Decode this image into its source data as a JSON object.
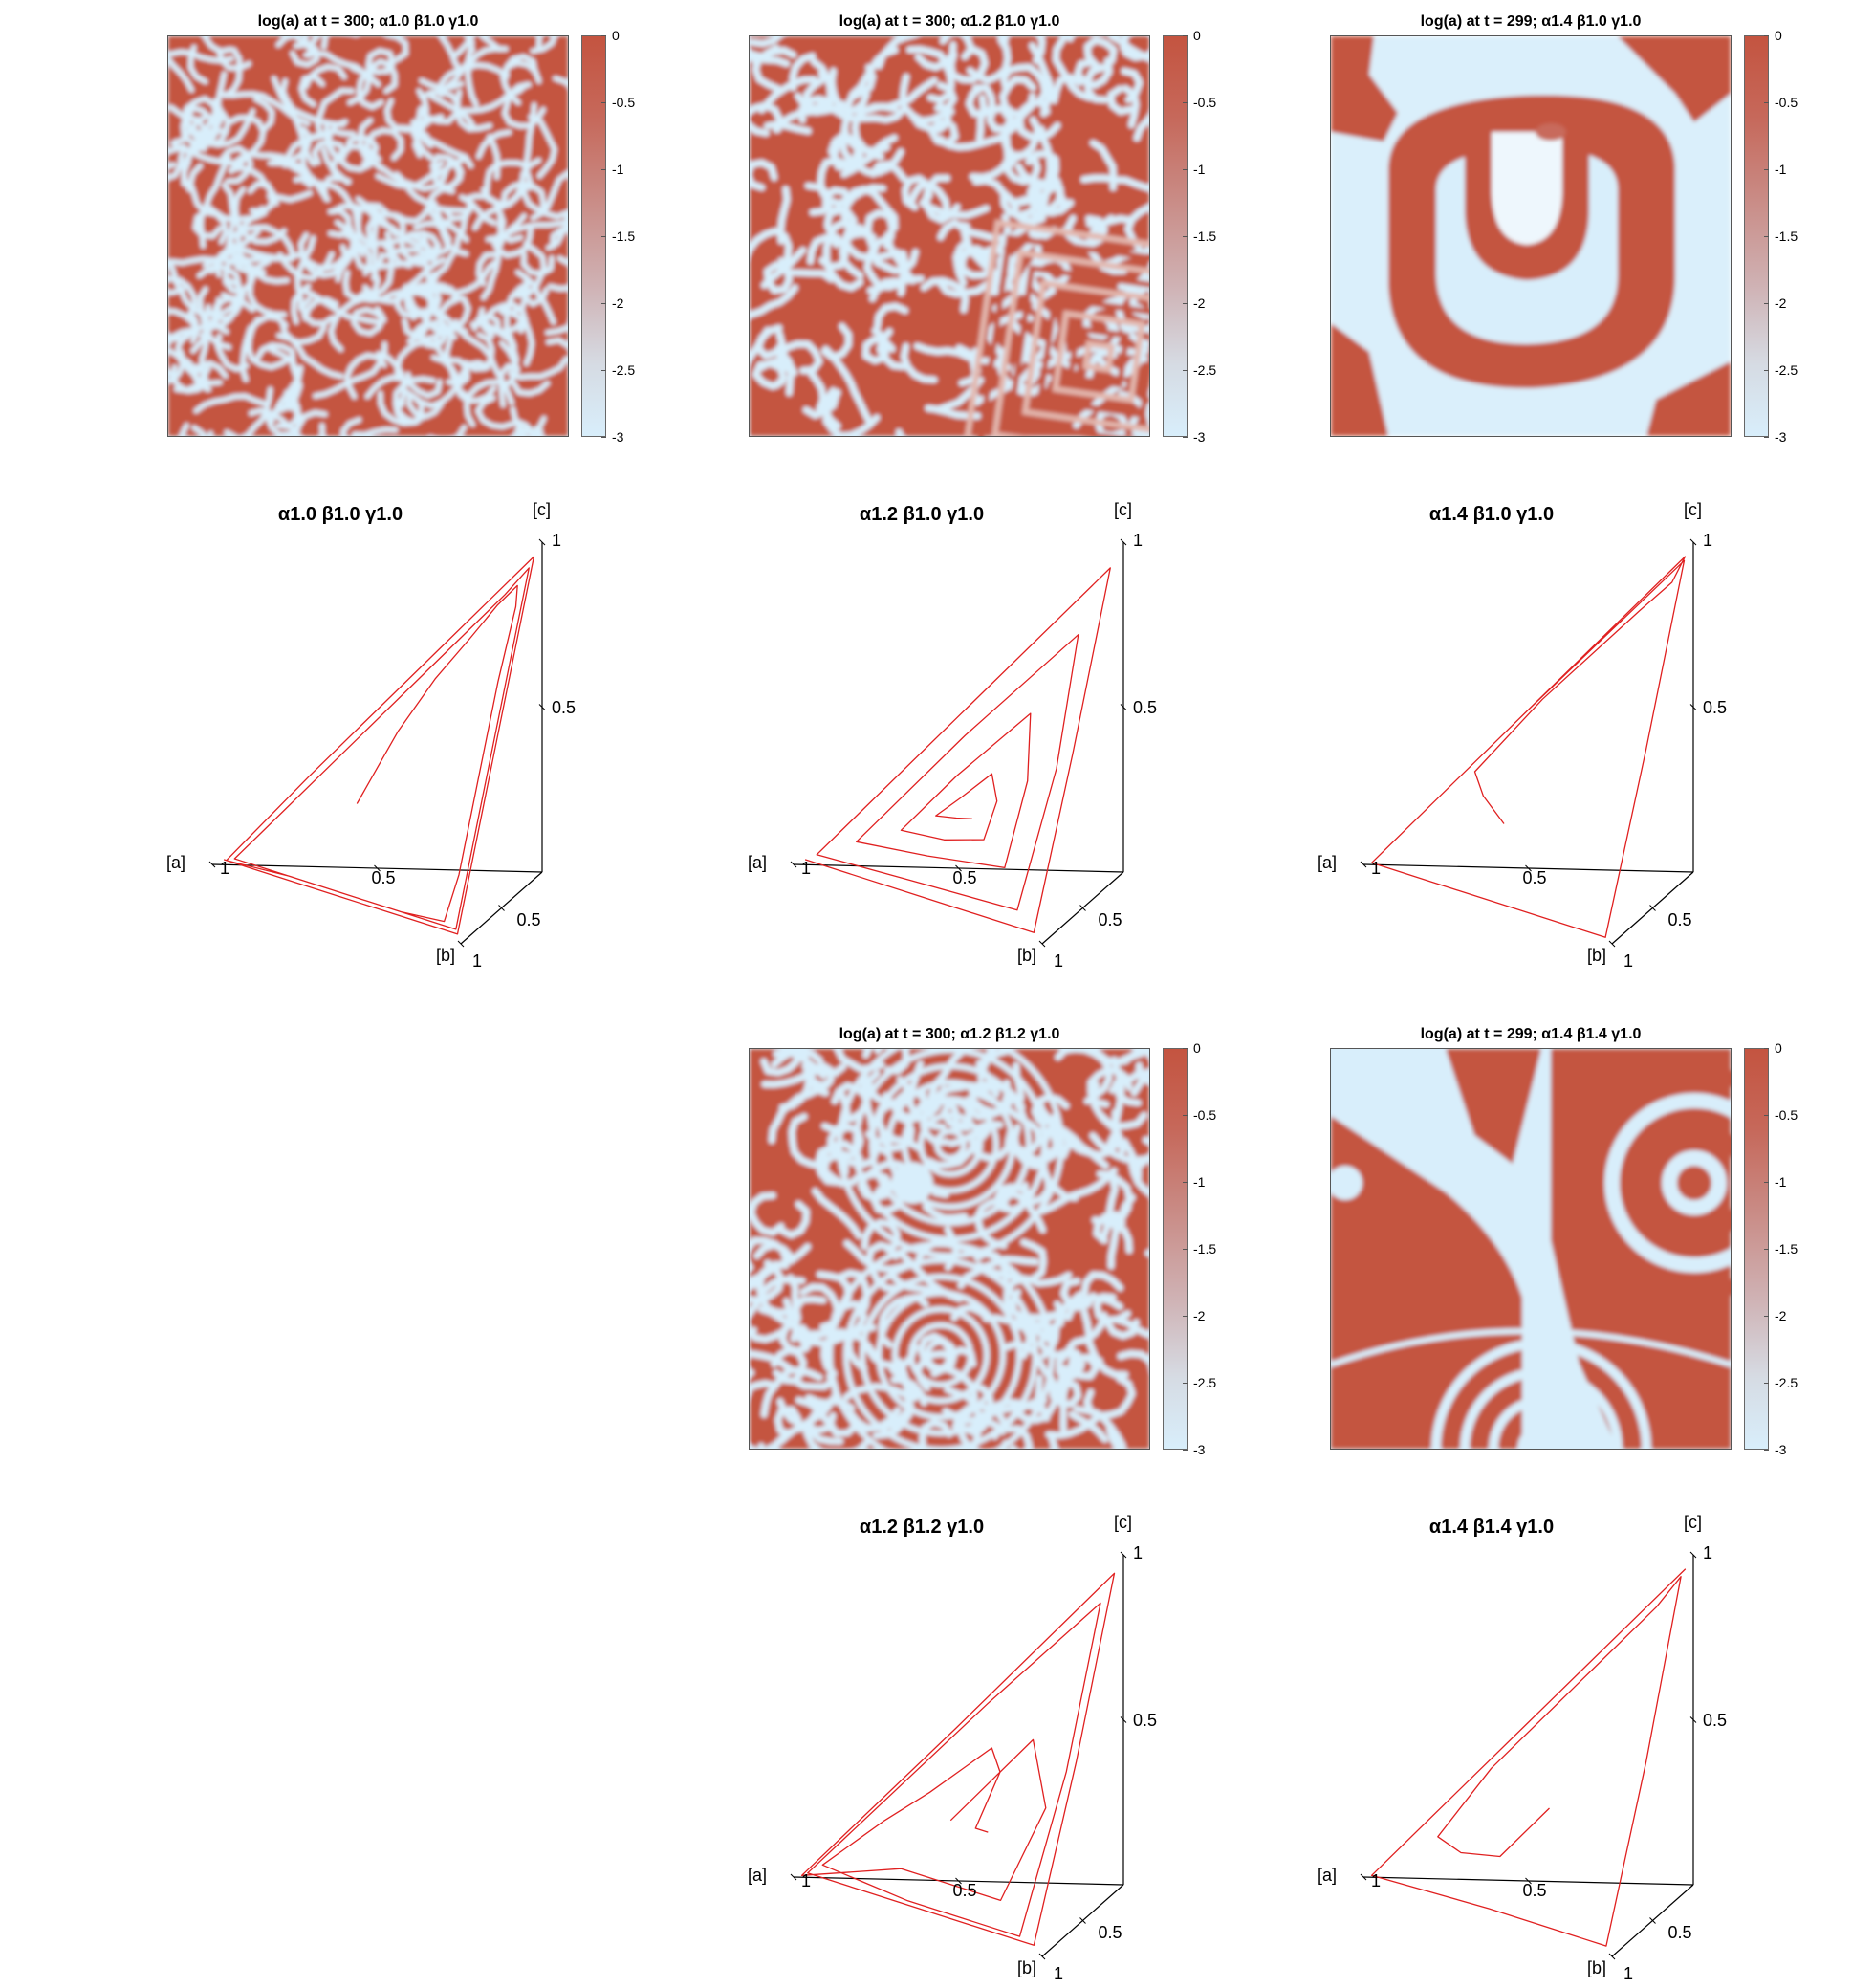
{
  "chart_data": [
    {
      "id": "h1",
      "type": "heatmap",
      "title": "log(a) at t = 300; α1.0 β1.0 γ1.0",
      "pattern": "dense labyrinth spiral stripes",
      "colormap": {
        "low": "#d8eefb",
        "high": "#c45440"
      },
      "clim": [
        -3,
        0
      ],
      "colorbar_ticks": [
        "0",
        "-0.5",
        "-1",
        "-1.5",
        "-2",
        "-2.5",
        "-3"
      ]
    },
    {
      "id": "h2",
      "type": "heatmap",
      "title": "log(a) at t = 300; α1.2 β1.0 γ1.0",
      "pattern": "labyrinth stripes with square target in lower right",
      "colormap": {
        "low": "#d8eefb",
        "high": "#c45440"
      },
      "clim": [
        -3,
        0
      ],
      "colorbar_ticks": [
        "0",
        "-0.5",
        "-1",
        "-1.5",
        "-2",
        "-2.5",
        "-3"
      ]
    },
    {
      "id": "h3",
      "type": "heatmap",
      "title": "log(a) at t = 299; α1.4 β1.0 γ1.0",
      "pattern": "large nested U-shaped rings",
      "colormap": {
        "low": "#d8eefb",
        "high": "#c45440"
      },
      "clim": [
        -3,
        0
      ],
      "colorbar_ticks": [
        "0",
        "-0.5",
        "-1",
        "-1.5",
        "-2",
        "-2.5",
        "-3"
      ]
    },
    {
      "id": "t1",
      "type": "line",
      "title": "α1.0 β1.0 γ1.0",
      "axes": [
        "[a]",
        "[b]",
        "[c]"
      ],
      "ticks": {
        "a": [
          "1",
          "0.5"
        ],
        "b": [
          "0.5",
          "1"
        ],
        "c": [
          "0.5",
          "1"
        ]
      },
      "xlim": [
        0,
        1
      ],
      "ylim": [
        0,
        1
      ],
      "zlim": [
        0,
        1
      ],
      "trajectory_style": "many tight loops along simplex edges",
      "series": [
        {
          "points": [
            [
              0.5,
              0.25,
              0.25
            ],
            [
              0.45,
              0.2,
              0.35
            ],
            [
              0.4,
              0.15,
              0.45
            ],
            [
              0.3,
              0.1,
              0.6
            ],
            [
              0.2,
              0.08,
              0.72
            ],
            [
              0.12,
              0.06,
              0.82
            ],
            [
              0.06,
              0.06,
              0.88
            ],
            [
              0.05,
              0.12,
              0.83
            ],
            [
              0.06,
              0.3,
              0.64
            ],
            [
              0.06,
              0.55,
              0.39
            ],
            [
              0.06,
              0.78,
              0.16
            ],
            [
              0.08,
              0.88,
              0.04
            ],
            [
              0.25,
              0.72,
              0.03
            ],
            [
              0.55,
              0.42,
              0.03
            ],
            [
              0.85,
              0.12,
              0.03
            ],
            [
              0.92,
              0.05,
              0.03
            ],
            [
              0.85,
              0.05,
              0.1
            ],
            [
              0.6,
              0.05,
              0.35
            ],
            [
              0.35,
              0.05,
              0.6
            ],
            [
              0.1,
              0.05,
              0.85
            ],
            [
              0.03,
              0.04,
              0.93
            ],
            [
              0.03,
              0.15,
              0.82
            ],
            [
              0.03,
              0.5,
              0.47
            ],
            [
              0.03,
              0.85,
              0.12
            ],
            [
              0.03,
              0.94,
              0.03
            ],
            [
              0.3,
              0.67,
              0.03
            ],
            [
              0.7,
              0.27,
              0.03
            ],
            [
              0.95,
              0.03,
              0.02
            ],
            [
              0.7,
              0.02,
              0.28
            ],
            [
              0.3,
              0.02,
              0.68
            ],
            [
              0.02,
              0.02,
              0.96
            ],
            [
              0.02,
              0.5,
              0.48
            ],
            [
              0.02,
              0.96,
              0.02
            ],
            [
              0.5,
              0.48,
              0.02
            ],
            [
              0.96,
              0.02,
              0.02
            ]
          ]
        }
      ]
    },
    {
      "id": "t2",
      "type": "line",
      "title": "α1.2 β1.0 γ1.0",
      "axes": [
        "[a]",
        "[b]",
        "[c]"
      ],
      "ticks": {
        "a": [
          "1",
          "0.5"
        ],
        "b": [
          "0.5",
          "1"
        ],
        "c": [
          "0.5",
          "1"
        ]
      },
      "xlim": [
        0,
        1
      ],
      "ylim": [
        0,
        1
      ],
      "zlim": [
        0,
        1
      ],
      "trajectory_style": "loops spiraling inward to interior",
      "series": [
        {
          "points": [
            [
              0.96,
              0.02,
              0.02
            ],
            [
              0.5,
              0.48,
              0.02
            ],
            [
              0.04,
              0.94,
              0.02
            ],
            [
              0.03,
              0.5,
              0.47
            ],
            [
              0.03,
              0.04,
              0.93
            ],
            [
              0.5,
              0.04,
              0.46
            ],
            [
              0.92,
              0.04,
              0.04
            ],
            [
              0.55,
              0.4,
              0.05
            ],
            [
              0.12,
              0.82,
              0.06
            ],
            [
              0.08,
              0.5,
              0.42
            ],
            [
              0.1,
              0.15,
              0.75
            ],
            [
              0.45,
              0.12,
              0.43
            ],
            [
              0.78,
              0.12,
              0.1
            ],
            [
              0.5,
              0.38,
              0.12
            ],
            [
              0.2,
              0.65,
              0.15
            ],
            [
              0.18,
              0.45,
              0.37
            ],
            [
              0.22,
              0.25,
              0.53
            ],
            [
              0.45,
              0.22,
              0.33
            ],
            [
              0.62,
              0.22,
              0.16
            ],
            [
              0.45,
              0.38,
              0.17
            ],
            [
              0.3,
              0.5,
              0.2
            ],
            [
              0.28,
              0.42,
              0.3
            ],
            [
              0.32,
              0.32,
              0.36
            ],
            [
              0.42,
              0.3,
              0.28
            ],
            [
              0.5,
              0.28,
              0.22
            ],
            [
              0.42,
              0.35,
              0.23
            ],
            [
              0.36,
              0.4,
              0.24
            ]
          ]
        }
      ]
    },
    {
      "id": "t3",
      "type": "line",
      "title": "α1.4 β1.0 γ1.0",
      "axes": [
        "[a]",
        "[b]",
        "[c]"
      ],
      "ticks": {
        "a": [
          "1",
          "0.5"
        ],
        "b": [
          "0.5",
          "1"
        ],
        "c": [
          "0.5",
          "1"
        ]
      },
      "xlim": [
        0,
        1
      ],
      "ylim": [
        0,
        1
      ],
      "zlim": [
        0,
        1
      ],
      "trajectory_style": "sparse large excursions to corners",
      "series": [
        {
          "points": [
            [
              0.5,
              0.3,
              0.2
            ],
            [
              0.6,
              0.15,
              0.25
            ],
            [
              0.65,
              0.05,
              0.3
            ],
            [
              0.45,
              0.03,
              0.52
            ],
            [
              0.15,
              0.05,
              0.8
            ],
            [
              0.05,
              0.06,
              0.89
            ],
            [
              0.02,
              0.02,
              0.96
            ],
            [
              0.5,
              0.02,
              0.48
            ],
            [
              0.97,
              0.02,
              0.01
            ],
            [
              0.5,
              0.49,
              0.01
            ],
            [
              0.03,
              0.96,
              0.01
            ],
            [
              0.02,
              0.5,
              0.48
            ],
            [
              0.02,
              0.03,
              0.95
            ],
            [
              0.5,
              0.02,
              0.48
            ],
            [
              0.97,
              0.02,
              0.01
            ]
          ]
        }
      ]
    },
    {
      "id": "h4",
      "type": "heatmap",
      "title": "log(a) at t = 300; α1.2 β1.2 γ1.0",
      "pattern": "concentric and spiral stripes",
      "colormap": {
        "low": "#d8eefb",
        "high": "#c45440"
      },
      "clim": [
        -3,
        0
      ],
      "colorbar_ticks": [
        "0",
        "-0.5",
        "-1",
        "-1.5",
        "-2",
        "-2.5",
        "-3"
      ]
    },
    {
      "id": "h5",
      "type": "heatmap",
      "title": "log(a) at t = 299; α1.4 β1.4 γ1.0",
      "pattern": "wide bands and large rings",
      "colormap": {
        "low": "#d8eefb",
        "high": "#c45440"
      },
      "clim": [
        -3,
        0
      ],
      "colorbar_ticks": [
        "0",
        "-0.5",
        "-1",
        "-1.5",
        "-2",
        "-2.5",
        "-3"
      ]
    },
    {
      "id": "t4",
      "type": "line",
      "title": "α1.2 β1.2 γ1.0",
      "axes": [
        "[a]",
        "[b]",
        "[c]"
      ],
      "ticks": {
        "a": [
          "1",
          "0.5"
        ],
        "b": [
          "0.5",
          "1"
        ],
        "c": [
          "0.5",
          "1"
        ]
      },
      "xlim": [
        0,
        1
      ],
      "ylim": [
        0,
        1
      ],
      "zlim": [
        0,
        1
      ],
      "trajectory_style": "loops near simplex edges with inner excursions",
      "series": [
        {
          "points": [
            [
              0.3,
              0.45,
              0.25
            ],
            [
              0.35,
              0.4,
              0.25
            ],
            [
              0.3,
              0.3,
              0.4
            ],
            [
              0.35,
              0.2,
              0.45
            ],
            [
              0.55,
              0.15,
              0.3
            ],
            [
              0.7,
              0.1,
              0.2
            ],
            [
              0.9,
              0.05,
              0.05
            ],
            [
              0.55,
              0.42,
              0.03
            ],
            [
              0.1,
              0.87,
              0.03
            ],
            [
              0.05,
              0.5,
              0.45
            ],
            [
              0.05,
              0.08,
              0.87
            ],
            [
              0.4,
              0.05,
              0.55
            ],
            [
              0.95,
              0.03,
              0.02
            ],
            [
              0.5,
              0.48,
              0.02
            ],
            [
              0.04,
              0.94,
              0.02
            ],
            [
              0.02,
              0.5,
              0.48
            ],
            [
              0.02,
              0.03,
              0.95
            ],
            [
              0.5,
              0.03,
              0.47
            ],
            [
              0.97,
              0.02,
              0.01
            ],
            [
              0.6,
              0.3,
              0.1
            ],
            [
              0.2,
              0.7,
              0.1
            ],
            [
              0.1,
              0.55,
              0.35
            ],
            [
              0.2,
              0.3,
              0.5
            ],
            [
              0.45,
              0.3,
              0.25
            ]
          ]
        }
      ]
    },
    {
      "id": "t5",
      "type": "line",
      "title": "α1.4 β1.4 γ1.0",
      "axes": [
        "[a]",
        "[b]",
        "[c]"
      ],
      "ticks": {
        "a": [
          "1",
          "0.5"
        ],
        "b": [
          "0.5",
          "1"
        ],
        "c": [
          "0.5",
          "1"
        ]
      },
      "xlim": [
        0,
        1
      ],
      "ylim": [
        0,
        1
      ],
      "zlim": [
        0,
        1
      ],
      "trajectory_style": "sparse large excursions to corners",
      "series": [
        {
          "points": [
            [
              0.35,
              0.35,
              0.3
            ],
            [
              0.5,
              0.35,
              0.15
            ],
            [
              0.65,
              0.22,
              0.13
            ],
            [
              0.75,
              0.1,
              0.15
            ],
            [
              0.6,
              0.05,
              0.35
            ],
            [
              0.3,
              0.05,
              0.65
            ],
            [
              0.1,
              0.05,
              0.85
            ],
            [
              0.03,
              0.03,
              0.94
            ],
            [
              0.02,
              0.5,
              0.48
            ],
            [
              0.03,
              0.95,
              0.02
            ],
            [
              0.5,
              0.48,
              0.02
            ],
            [
              0.97,
              0.02,
              0.01
            ],
            [
              0.5,
              0.02,
              0.48
            ],
            [
              0.02,
              0.02,
              0.96
            ],
            [
              0.5,
              0.02,
              0.48
            ],
            [
              0.97,
              0.02,
              0.01
            ]
          ]
        }
      ]
    }
  ],
  "colors": {
    "trajectory": "#e02020",
    "axes": "#000000"
  }
}
